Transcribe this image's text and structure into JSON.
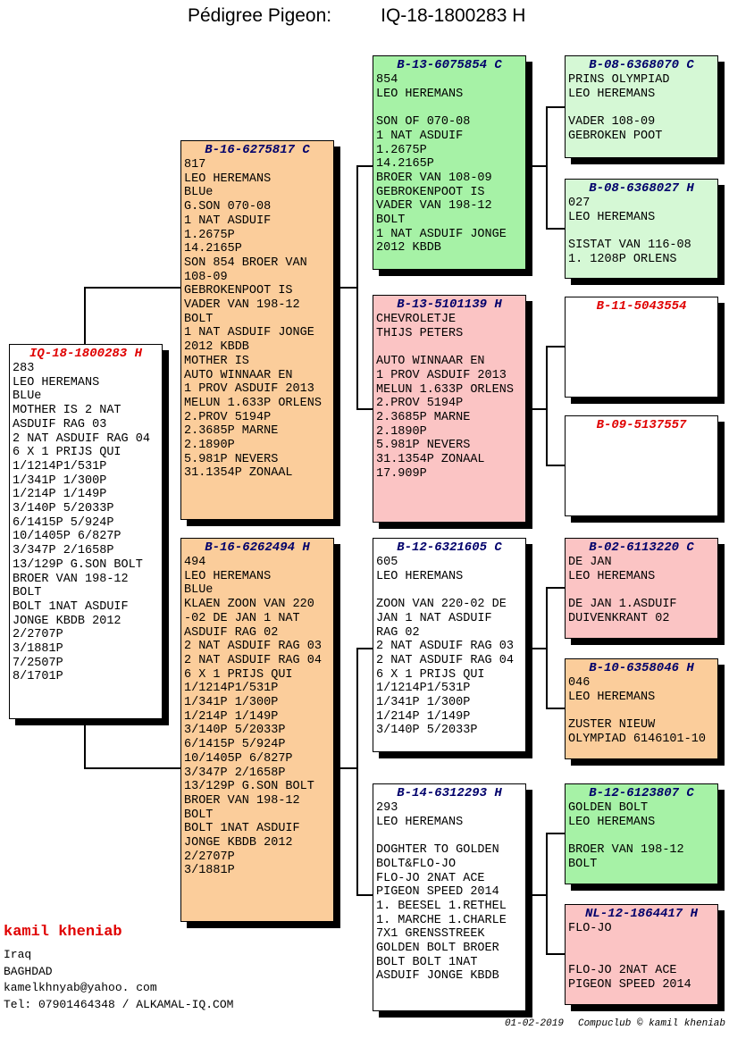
{
  "header": {
    "label": "Pédigree Pigeon:",
    "ring_number": "IQ-18-1800283 H"
  },
  "palette": {
    "white": "#FFFFFF",
    "orange": "#FBCD9B",
    "green": "#A6F2A6",
    "pale_green": "#D5F8D5",
    "pink": "#FBC4C4",
    "title_navy": "#00006B",
    "title_red": "#E00000"
  },
  "boxes": [
    {
      "key": "subject",
      "generation": 1,
      "title": "IQ-18-1800283 H",
      "title_style": "red",
      "bg": "white",
      "lines": [
        "283",
        "LEO HEREMANS",
        "BLUe",
        "MOTHER IS 2 NAT",
        "ASDUIF RAG 03",
        "2 NAT ASDUIF RAG 04",
        "6 X 1 PRIJS QUI",
        "1/1214P1/531P",
        "1/341P 1/300P",
        "1/214P 1/149P",
        "3/140P 5/2033P",
        "6/1415P 5/924P",
        "10/1405P 6/827P",
        "3/347P 2/1658P",
        "13/129P G.SON BOLT",
        "BROER VAN 198-12",
        "BOLT",
        "BOLT 1NAT ASDUIF",
        "JONGE KBDB 2012",
        "2/2707P",
        "3/1881P",
        "7/2507P",
        "8/1701P"
      ]
    },
    {
      "key": "sire",
      "generation": 2,
      "title": "B-16-6275817 C",
      "title_style": "navy",
      "bg": "orange",
      "lines": [
        "817",
        "LEO HEREMANS",
        "BLUe",
        "G.SON 070-08",
        "1 NAT ASDUIF",
        "1.2675P",
        "14.2165P",
        "SON 854 BROER VAN",
        "108-09",
        "GEBROKENPOOT IS",
        "VADER VAN 198-12",
        "BOLT",
        "1 NAT ASDUIF JONGE",
        "2012 KBDB",
        "MOTHER IS",
        "AUTO WINNAAR EN",
        "1 PROV ASDUIF 2013",
        "MELUN 1.633P ORLENS",
        "2.PROV 5194P",
        "2.3685P MARNE",
        "2.1890P",
        "5.981P NEVERS",
        "31.1354P ZONAAL"
      ]
    },
    {
      "key": "dam",
      "generation": 2,
      "title": "B-16-6262494 H",
      "title_style": "navy",
      "bg": "orange",
      "lines": [
        "494",
        "LEO HEREMANS",
        "BLUe",
        "KLAEN ZOON VAN 220",
        "-02 DE JAN 1 NAT",
        "ASDUIF RAG 02",
        "2 NAT ASDUIF RAG 03",
        "2 NAT ASDUIF RAG 04",
        "6 X 1 PRIJS QUI",
        "1/1214P1/531P",
        "1/341P 1/300P",
        "1/214P 1/149P",
        "3/140P 5/2033P",
        "6/1415P 5/924P",
        "10/1405P 6/827P",
        "3/347P 2/1658P",
        "13/129P G.SON BOLT",
        "BROER VAN 198-12",
        "BOLT",
        "BOLT 1NAT ASDUIF",
        "JONGE KBDB 2012",
        "2/2707P",
        "3/1881P"
      ]
    },
    {
      "key": "ss",
      "generation": 3,
      "title": "B-13-6075854 C",
      "title_style": "navy",
      "bg": "green",
      "lines": [
        "854",
        "LEO HEREMANS",
        "",
        "SON OF 070-08",
        "1 NAT ASDUIF",
        "1.2675P",
        "14.2165P",
        "BROER VAN 108-09",
        "GEBROKENPOOT IS",
        "VADER VAN 198-12",
        "BOLT",
        "1 NAT ASDUIF JONGE",
        "2012 KBDB"
      ]
    },
    {
      "key": "sd",
      "generation": 3,
      "title": "B-13-5101139 H",
      "title_style": "navy",
      "bg": "pink",
      "lines": [
        "CHEVROLETJE",
        "THIJS PETERS",
        "",
        "AUTO WINNAAR EN",
        "1 PROV ASDUIF 2013",
        "MELUN 1.633P ORLENS",
        "2.PROV 5194P",
        "2.3685P MARNE",
        "2.1890P",
        "5.981P NEVERS",
        "31.1354P ZONAAL",
        "17.909P"
      ]
    },
    {
      "key": "ds",
      "generation": 3,
      "title": "B-12-6321605 C",
      "title_style": "navy",
      "bg": "white",
      "lines": [
        "605",
        "LEO HEREMANS",
        "",
        "ZOON VAN 220-02 DE",
        "JAN 1 NAT ASDUIF",
        "RAG 02",
        "2 NAT ASDUIF RAG 03",
        "2 NAT ASDUIF RAG 04",
        "6 X 1 PRIJS QUI",
        "1/1214P1/531P",
        "1/341P 1/300P",
        "1/214P 1/149P",
        "3/140P 5/2033P"
      ]
    },
    {
      "key": "dd",
      "generation": 3,
      "title": "B-14-6312293 H",
      "title_style": "navy",
      "bg": "white",
      "lines": [
        "293",
        "LEO HEREMANS",
        "",
        "DOGHTER TO GOLDEN",
        "BOLT&FLO-JO",
        "FLO-JO 2NAT ACE",
        "PIGEON SPEED 2014",
        "1. BEESEL 1.RETHEL",
        "1. MARCHE 1.CHARLE",
        "7X1 GRENSSTREEK",
        "GOLDEN BOLT BROER",
        "BOLT BOLT 1NAT",
        "ASDUIF JONGE KBDB"
      ]
    },
    {
      "key": "sss",
      "generation": 4,
      "title": "B-08-6368070 C",
      "title_style": "navy",
      "bg": "pale_green",
      "lines": [
        "PRINS OLYMPIAD",
        "LEO HEREMANS",
        "",
        "VADER 108-09",
        "GEBROKEN POOT"
      ]
    },
    {
      "key": "ssd",
      "generation": 4,
      "title": "B-08-6368027 H",
      "title_style": "navy",
      "bg": "pale_green",
      "lines": [
        "027",
        "LEO HEREMANS",
        "",
        "SISTAT VAN 116-08",
        "1. 1208P ORLENS"
      ]
    },
    {
      "key": "sds",
      "generation": 4,
      "title": "B-11-5043554",
      "title_style": "red",
      "bg": "white",
      "lines": []
    },
    {
      "key": "sdd",
      "generation": 4,
      "title": "B-09-5137557",
      "title_style": "red",
      "bg": "white",
      "lines": []
    },
    {
      "key": "dss",
      "generation": 4,
      "title": "B-02-6113220 C",
      "title_style": "navy",
      "bg": "pink",
      "lines": [
        "DE JAN",
        "LEO HEREMANS",
        "",
        "DE JAN 1.ASDUIF",
        "DUIVENKRANT 02"
      ]
    },
    {
      "key": "dsd",
      "generation": 4,
      "title": "B-10-6358046 H",
      "title_style": "navy",
      "bg": "orange",
      "lines": [
        "046",
        "LEO HEREMANS",
        "",
        "ZUSTER NIEUW",
        "OLYMPIAD 6146101-10"
      ]
    },
    {
      "key": "dds",
      "generation": 4,
      "title": "B-12-6123807 C",
      "title_style": "navy",
      "bg": "green",
      "lines": [
        "GOLDEN BOLT",
        "LEO HEREMANS",
        "",
        "BROER VAN 198-12",
        "BOLT"
      ]
    },
    {
      "key": "ddd",
      "generation": 4,
      "title": "NL-12-1864417 H",
      "title_style": "navy",
      "bg": "pink",
      "lines": [
        "FLO-JO",
        "",
        "",
        "FLO-JO 2NAT ACE",
        "PIGEON SPEED 2014"
      ]
    }
  ],
  "footer": {
    "breeder_name": "kamil kheniab",
    "country": "Iraq",
    "city": "BAGHDAD",
    "email": "kamelkhnyab@yahoo. com",
    "phone_line": "Tel: 07901464348 / ALKAMAL-IQ.COM",
    "print_date": "01-02-2019",
    "credit": "Compuclub © kamil kheniab"
  }
}
